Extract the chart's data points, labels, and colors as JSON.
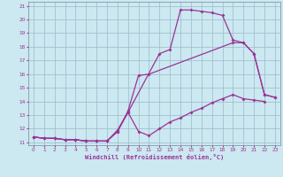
{
  "xlabel": "Windchill (Refroidissement éolien,°C)",
  "xlim": [
    -0.5,
    23.5
  ],
  "ylim": [
    10.8,
    21.3
  ],
  "yticks": [
    11,
    12,
    13,
    14,
    15,
    16,
    17,
    18,
    19,
    20,
    21
  ],
  "xticks": [
    0,
    1,
    2,
    3,
    4,
    5,
    6,
    7,
    8,
    9,
    10,
    11,
    12,
    13,
    14,
    15,
    16,
    17,
    18,
    19,
    20,
    21,
    22,
    23
  ],
  "bg_color": "#cce8f0",
  "grid_color": "#99bbcc",
  "line_color": "#993399",
  "curve1_x": [
    0,
    1,
    2,
    3,
    4,
    5,
    6,
    7,
    8,
    9,
    12,
    13,
    14,
    15,
    16,
    17,
    18,
    19,
    20,
    21,
    22,
    23
  ],
  "curve1_y": [
    11.4,
    11.3,
    11.3,
    11.2,
    11.2,
    11.1,
    11.1,
    11.1,
    11.8,
    13.2,
    17.5,
    17.8,
    20.7,
    20.7,
    20.6,
    20.5,
    20.3,
    18.5,
    18.3,
    17.5,
    14.5,
    14.3
  ],
  "curve2_x": [
    0,
    1,
    2,
    3,
    4,
    5,
    6,
    7,
    8,
    9,
    10,
    11,
    19,
    20,
    21,
    22,
    23
  ],
  "curve2_y": [
    11.4,
    11.3,
    11.3,
    11.2,
    11.2,
    11.1,
    11.1,
    11.1,
    11.8,
    13.3,
    15.9,
    16.0,
    18.3,
    18.3,
    17.5,
    14.5,
    14.3
  ],
  "curve3_x": [
    0,
    1,
    2,
    3,
    4,
    5,
    6,
    7,
    8,
    9,
    10,
    11,
    12,
    13,
    14,
    15,
    16,
    17,
    18,
    19,
    20,
    21,
    22
  ],
  "curve3_y": [
    11.4,
    11.3,
    11.3,
    11.2,
    11.2,
    11.1,
    11.1,
    11.1,
    11.9,
    13.2,
    11.8,
    11.5,
    12.0,
    12.5,
    12.8,
    13.2,
    13.5,
    13.9,
    14.2,
    14.5,
    14.2,
    14.1,
    14.0
  ],
  "marker_size": 2.0,
  "line_width": 0.9
}
